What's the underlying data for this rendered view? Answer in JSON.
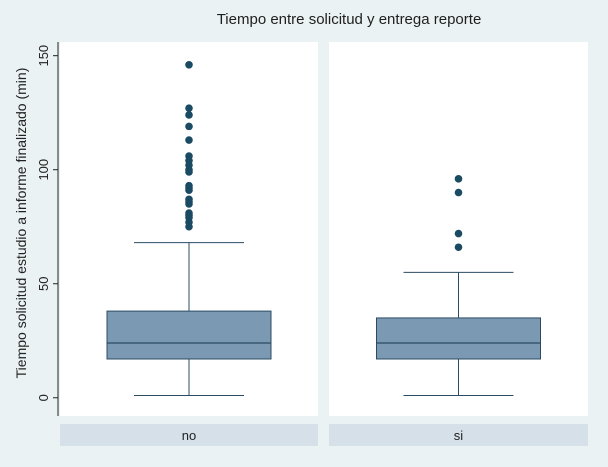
{
  "chart_data": {
    "type": "box",
    "title": "Tiempo entre solicitud y entrega reporte",
    "ylabel": "Tiempo solicitud estudio a informe finalizado (min)",
    "xlabel": "",
    "ylim": [
      -8,
      156
    ],
    "yticks": [
      0,
      50,
      100,
      150
    ],
    "grid": false,
    "categories": [
      "no",
      "si"
    ],
    "boxes": [
      {
        "label": "no",
        "whisker_low": 1,
        "q1": 17,
        "median": 24,
        "q3": 38,
        "whisker_high": 68,
        "outliers": [
          146,
          127,
          124,
          119,
          113,
          106,
          104,
          102,
          100,
          99,
          93,
          92,
          91,
          87,
          86,
          85,
          81,
          80,
          79,
          77,
          75
        ]
      },
      {
        "label": "si",
        "whisker_low": 1,
        "q1": 17,
        "median": 24,
        "q3": 35,
        "whisker_high": 55,
        "outliers": [
          96,
          90,
          72,
          66
        ]
      }
    ],
    "colors": {
      "background": "#eaf2f3",
      "plot_background": "#ffffff",
      "box_fill": "#7b99b3",
      "box_stroke": "#2b4b63",
      "outlier": "#1b4b63",
      "strip": "#d5e0e8"
    }
  }
}
